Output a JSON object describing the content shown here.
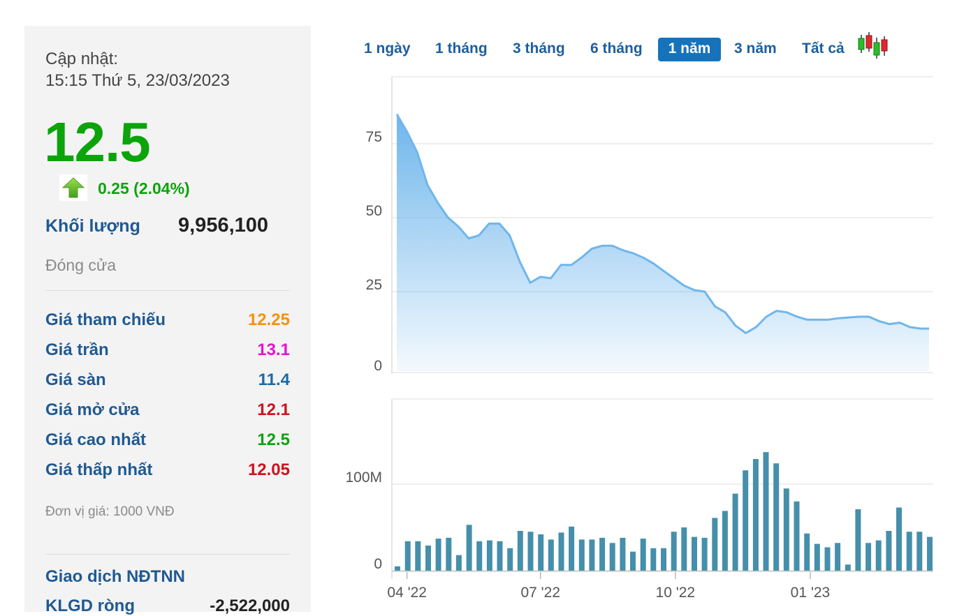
{
  "panel": {
    "update_label": "Cập nhật:",
    "update_time": "15:15 Thứ 5, 23/03/2023",
    "price": "12.5",
    "change": "0.25 (2.04%)",
    "volume_label": "Khối lượng",
    "volume_value": "9,956,100",
    "status": "Đóng cửa",
    "rows": [
      {
        "label": "Giá tham chiếu",
        "value": "12.25",
        "color": "#f6920a"
      },
      {
        "label": "Giá trần",
        "value": "13.1",
        "color": "#e512d5"
      },
      {
        "label": "Giá sàn",
        "value": "11.4",
        "color": "#1b6ba3"
      },
      {
        "label": "Giá mở cửa",
        "value": "12.1",
        "color": "#d0121b"
      },
      {
        "label": "Giá cao nhất",
        "value": "12.5",
        "color": "#0ba40b"
      },
      {
        "label": "Giá thấp nhất",
        "value": "12.05",
        "color": "#d0121b"
      }
    ],
    "unit": "Đơn vị giá: 1000 VNĐ",
    "foreign_title": "Giao dịch NĐTNN",
    "foreign_kl_label": "KLGD ròng",
    "foreign_kl_value": "-2,522,000"
  },
  "tabs": [
    {
      "label": "1 ngày",
      "active": false
    },
    {
      "label": "1 tháng",
      "active": false
    },
    {
      "label": "3 tháng",
      "active": false
    },
    {
      "label": "6 tháng",
      "active": false
    },
    {
      "label": "1 năm",
      "active": true
    },
    {
      "label": "3 năm",
      "active": false
    },
    {
      "label": "Tất cả",
      "active": false
    }
  ],
  "colors": {
    "up": "#0ba40b",
    "accent": "#1673bb",
    "price_line": "#6fb6ec",
    "volume_bar": "#468fab"
  },
  "chart_data": [
    {
      "type": "area",
      "title": "",
      "ylim": [
        0,
        100
      ],
      "yticks": [
        0,
        25,
        50,
        75
      ],
      "x_ticks": [
        "04 '22",
        "07 '22",
        "10 '22",
        "01 '23"
      ],
      "grid": true,
      "series": [
        {
          "x": [
            "2022-03-25",
            "2022-04-01",
            "2022-04-08",
            "2022-04-15",
            "2022-04-22",
            "2022-04-29",
            "2022-05-06",
            "2022-05-13",
            "2022-05-20",
            "2022-05-27",
            "2022-06-03",
            "2022-06-10",
            "2022-06-17",
            "2022-06-24",
            "2022-07-01",
            "2022-07-08",
            "2022-07-15",
            "2022-07-22",
            "2022-07-29",
            "2022-08-05",
            "2022-08-12",
            "2022-08-19",
            "2022-08-26",
            "2022-09-02",
            "2022-09-09",
            "2022-09-16",
            "2022-09-23",
            "2022-09-30",
            "2022-10-07",
            "2022-10-14",
            "2022-10-21",
            "2022-10-28",
            "2022-11-04",
            "2022-11-11",
            "2022-11-18",
            "2022-11-25",
            "2022-12-02",
            "2022-12-09",
            "2022-12-16",
            "2022-12-23",
            "2022-12-30",
            "2023-01-06",
            "2023-01-13",
            "2023-01-20",
            "2023-02-03",
            "2023-02-10",
            "2023-02-17",
            "2023-02-24",
            "2023-03-03",
            "2023-03-10",
            "2023-03-17",
            "2023-03-23"
          ],
          "values": [
            85,
            79,
            72,
            61,
            55,
            50,
            47,
            43,
            44,
            48,
            48,
            44,
            35,
            28,
            30,
            29.5,
            34,
            34,
            36.5,
            39.5,
            40.5,
            40.5,
            39,
            38,
            36.5,
            34.5,
            32,
            29.5,
            27,
            25.5,
            25,
            20,
            18,
            13.5,
            11,
            13,
            16.5,
            18.5,
            18,
            16.5,
            15.5,
            15.5,
            15.5,
            16,
            16.5,
            16.5,
            15,
            14,
            14.5,
            13,
            12.5,
            12.5
          ]
        }
      ]
    },
    {
      "type": "bar",
      "title": "",
      "ylabel_ticks": [
        "0",
        "100M"
      ],
      "ytick_values": [
        0,
        100000000
      ],
      "x_ticks": [
        "04 '22",
        "07 '22",
        "10 '22",
        "01 '23"
      ],
      "series": [
        {
          "values": [
            5000000,
            34000000,
            34000000,
            29000000,
            37000000,
            38000000,
            18000000,
            53000000,
            34000000,
            35000000,
            34000000,
            26000000,
            46000000,
            45000000,
            42000000,
            36000000,
            44000000,
            51000000,
            36000000,
            36000000,
            38000000,
            32000000,
            38000000,
            22000000,
            37000000,
            26000000,
            26000000,
            45000000,
            50000000,
            39000000,
            38000000,
            61000000,
            69000000,
            89000000,
            116000000,
            129000000,
            137000000,
            124000000,
            95000000,
            80000000,
            43000000,
            31000000,
            27000000,
            32000000,
            7000000,
            71000000,
            32000000,
            35000000,
            46000000,
            73000000,
            45000000,
            45000000,
            39000000
          ]
        }
      ]
    }
  ]
}
